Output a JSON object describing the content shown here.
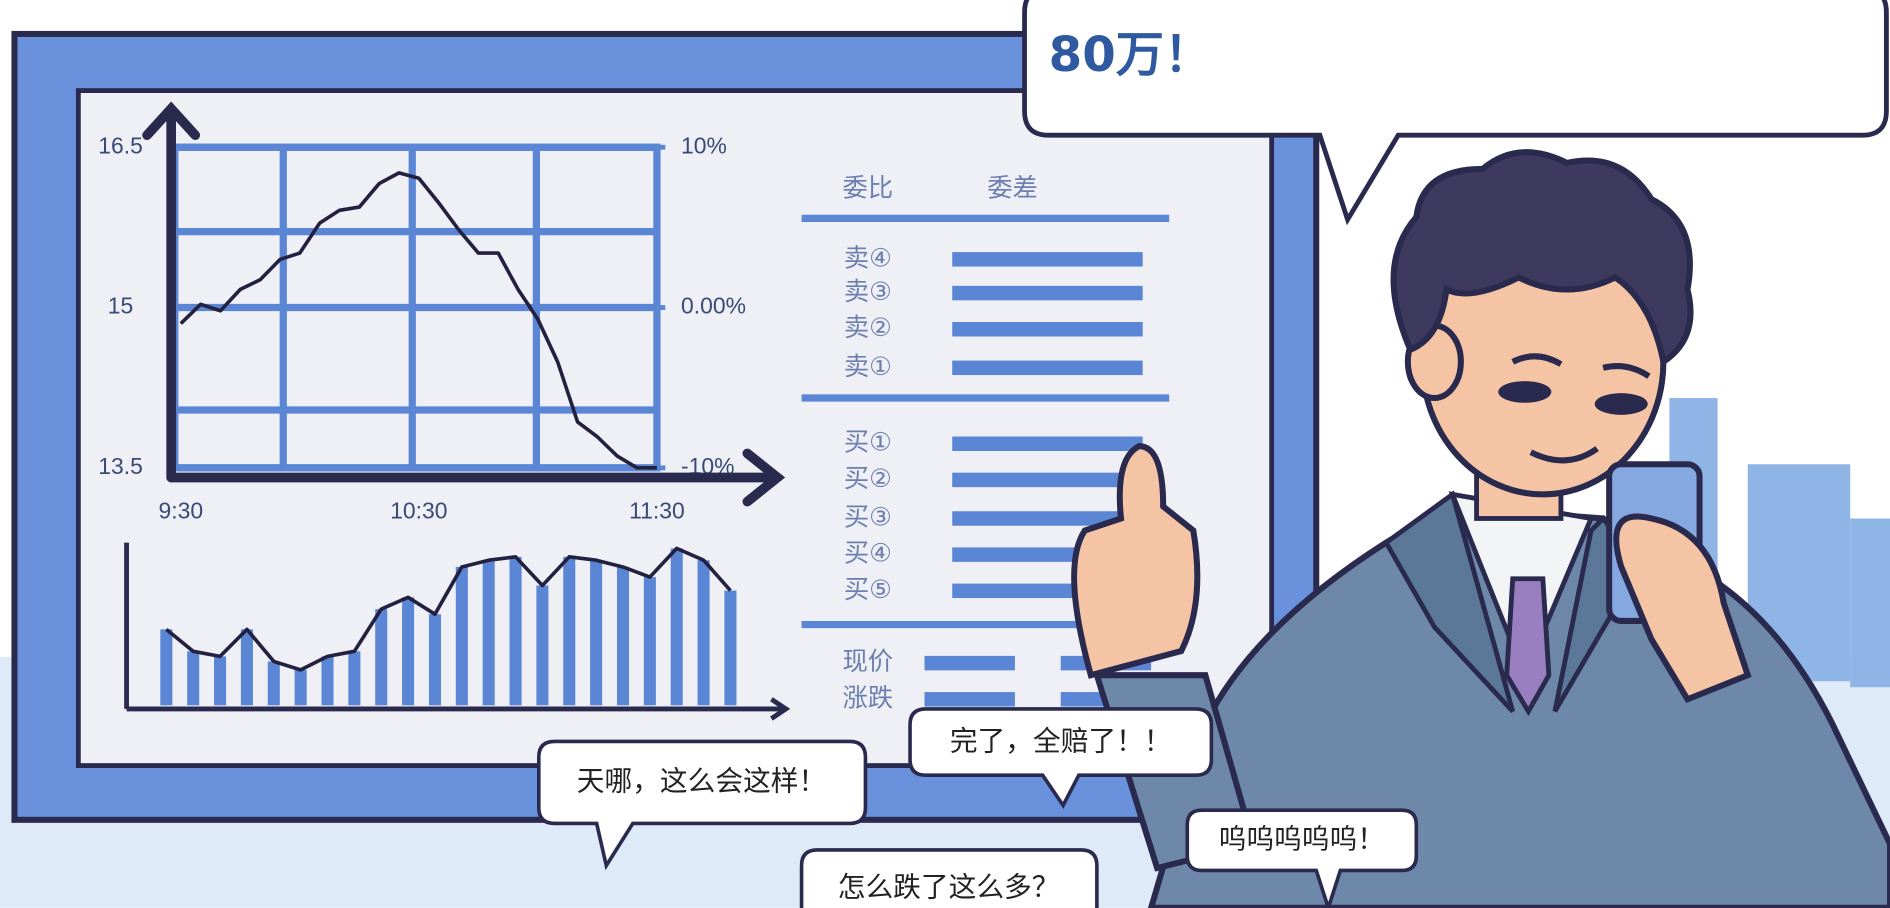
{
  "chart_data": [
    {
      "type": "line",
      "categories": [
        "9:30",
        null,
        null,
        null,
        null,
        null,
        null,
        null,
        null,
        null,
        null,
        null,
        "10:30",
        null,
        null,
        null,
        null,
        null,
        null,
        null,
        null,
        null,
        null,
        null,
        "11:30"
      ],
      "values": [
        14.85,
        15.03,
        14.97,
        15.17,
        15.26,
        15.45,
        15.51,
        15.79,
        15.91,
        15.94,
        16.16,
        16.26,
        16.21,
        15.98,
        15.73,
        15.51,
        15.51,
        15.17,
        14.89,
        14.49,
        13.93,
        13.79,
        13.61,
        13.5,
        13.5
      ],
      "color": "#23213f",
      "ylim": [
        13.5,
        16.5
      ],
      "yticks": [
        16.5,
        15,
        13.5
      ],
      "y2lim": [
        -10,
        10
      ],
      "y2ticks": [
        {
          "value": 10,
          "label": "10%"
        },
        {
          "value": 0,
          "label": "0.00%"
        },
        {
          "value": -10,
          "label": "-10%"
        }
      ],
      "grid": true
    },
    {
      "type": "bar",
      "values": [
        45,
        32,
        29,
        45,
        26,
        21,
        29,
        32,
        57,
        64,
        54,
        82,
        86,
        88,
        71,
        88,
        86,
        82,
        76,
        93,
        86,
        68
      ],
      "color": "#5b86d6",
      "ylim": [
        0,
        100
      ]
    }
  ],
  "order_book": {
    "headers": [
      "委比",
      "委差"
    ],
    "rows": [
      "卖④",
      "卖③",
      "卖②",
      "卖①",
      "买①",
      "买②",
      "买③",
      "买④",
      "买⑤"
    ],
    "footer": [
      "现价",
      "涨跌"
    ]
  },
  "speech": {
    "main": "80万！",
    "bubbles": [
      "天哪，这么会这样！",
      "完了，全赔了！！",
      "怎么跌了这么多？",
      "呜呜呜呜呜！"
    ]
  }
}
